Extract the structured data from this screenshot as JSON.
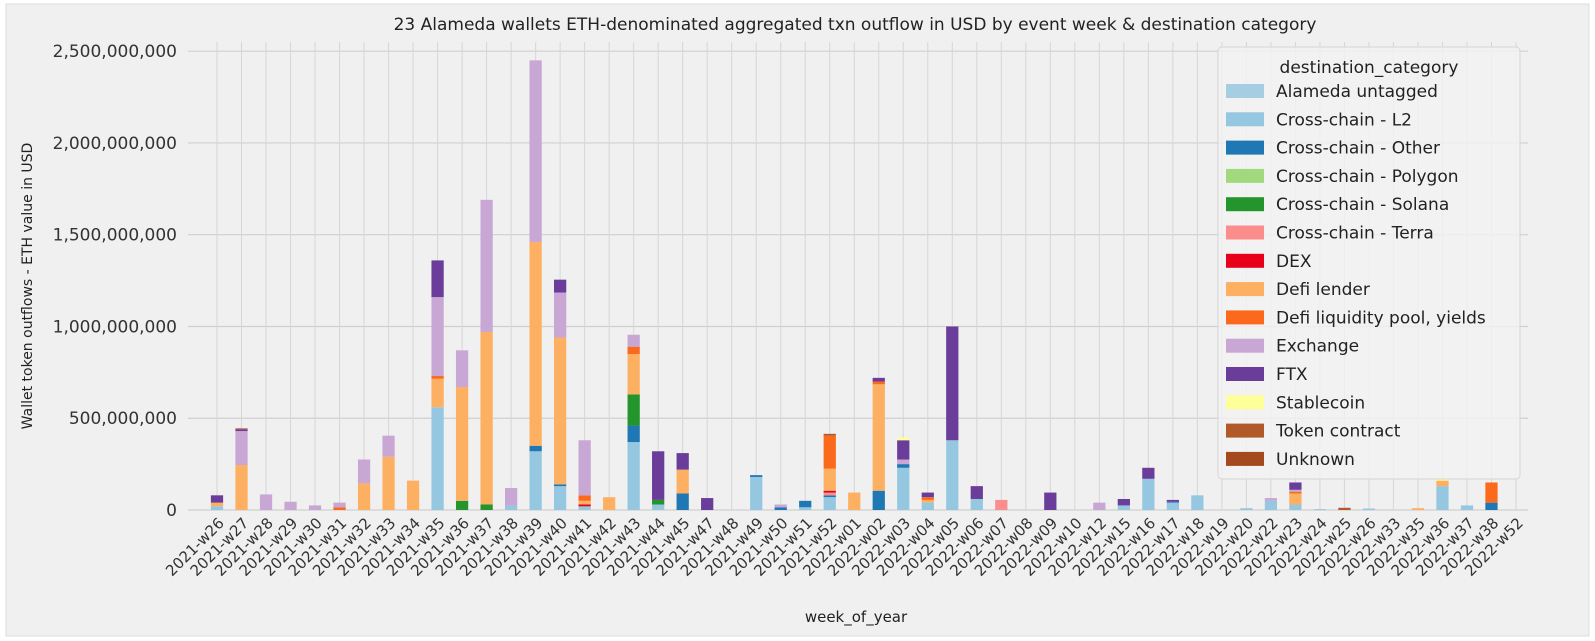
{
  "chart_data": {
    "type": "bar",
    "stacked": true,
    "title": "23 Alameda wallets ETH-denominated aggregated txn outflow in USD by event week & destination category",
    "xlabel": "week_of_year",
    "ylabel": "Wallet token outflows - ETH value in USD",
    "ylim": [
      0,
      2550000000
    ],
    "yticks": [
      0,
      500000000,
      1000000000,
      1500000000,
      2000000000,
      2500000000
    ],
    "ytick_labels": [
      "0",
      "500,000,000",
      "1,000,000,000",
      "1,500,000,000",
      "2,000,000,000",
      "2,500,000,000"
    ],
    "grid": true,
    "legend_title": "destination_category",
    "legend_position": "top-right",
    "categories": [
      "2021-w26",
      "2021-w27",
      "2021-w28",
      "2021-w29",
      "2021-w30",
      "2021-w31",
      "2021-w32",
      "2021-w33",
      "2021-w34",
      "2021-w35",
      "2021-w36",
      "2021-w37",
      "2021-w38",
      "2021-w39",
      "2021-w40",
      "2021-w41",
      "2021-w42",
      "2021-w43",
      "2021-w44",
      "2021-w45",
      "2021-w47",
      "2021-w48",
      "2021-w49",
      "2021-w50",
      "2021-w51",
      "2021-w52",
      "2022-w01",
      "2022-w02",
      "2022-w03",
      "2022-w04",
      "2022-w05",
      "2022-w06",
      "2022-w07",
      "2022-w08",
      "2022-w09",
      "2022-w10",
      "2022-w12",
      "2022-w15",
      "2022-w16",
      "2022-w17",
      "2022-w18",
      "2022-w19",
      "2022-w20",
      "2022-w22",
      "2022-w23",
      "2022-w24",
      "2022-w25",
      "2022-w26",
      "2022-w33",
      "2022-w35",
      "2022-w36",
      "2022-w37",
      "2022-w38",
      "2022-w52"
    ],
    "series": [
      {
        "name": "Alameda untagged",
        "color": "#a6cee3",
        "values": [
          0,
          0,
          0,
          0,
          0,
          0,
          0,
          0,
          0,
          0,
          0,
          0,
          0,
          0,
          0,
          0,
          0,
          0,
          0,
          0,
          0,
          0,
          0,
          0,
          0,
          0,
          0,
          0,
          0,
          0,
          0,
          0,
          0,
          0,
          0,
          0,
          0,
          0,
          0,
          0,
          0,
          0,
          0,
          0,
          0,
          0,
          0,
          0,
          0,
          0,
          0,
          0,
          0,
          0
        ]
      },
      {
        "name": "Cross-chain - L2",
        "color": "#95c8e0",
        "values": [
          20000000,
          0,
          0,
          0,
          0,
          0,
          0,
          0,
          0,
          560000000,
          0,
          0,
          25000000,
          320000000,
          130000000,
          20000000,
          0,
          370000000,
          30000000,
          0,
          0,
          0,
          180000000,
          0,
          15000000,
          70000000,
          0,
          0,
          230000000,
          40000000,
          380000000,
          60000000,
          0,
          0,
          0,
          0,
          0,
          25000000,
          170000000,
          40000000,
          80000000,
          0,
          10000000,
          50000000,
          30000000,
          5000000,
          0,
          8000000,
          0,
          0,
          130000000,
          25000000,
          0,
          0
        ]
      },
      {
        "name": "Cross-chain - Other",
        "color": "#1f78b4",
        "values": [
          0,
          0,
          0,
          0,
          0,
          0,
          0,
          0,
          0,
          0,
          0,
          0,
          0,
          30000000,
          10000000,
          0,
          0,
          90000000,
          0,
          90000000,
          0,
          0,
          10000000,
          15000000,
          35000000,
          10000000,
          0,
          105000000,
          20000000,
          0,
          0,
          0,
          0,
          0,
          0,
          0,
          0,
          0,
          0,
          5000000,
          0,
          0,
          0,
          0,
          0,
          0,
          0,
          0,
          0,
          0,
          0,
          0,
          40000000,
          0
        ]
      },
      {
        "name": "Cross-chain - Polygon",
        "color": "#a2d97f",
        "values": [
          0,
          0,
          0,
          0,
          0,
          0,
          0,
          0,
          0,
          0,
          0,
          0,
          0,
          0,
          0,
          0,
          0,
          0,
          0,
          0,
          0,
          0,
          0,
          0,
          0,
          0,
          0,
          0,
          0,
          0,
          0,
          0,
          0,
          0,
          0,
          0,
          0,
          0,
          0,
          0,
          0,
          0,
          0,
          0,
          0,
          0,
          0,
          0,
          0,
          0,
          0,
          0,
          0,
          0
        ]
      },
      {
        "name": "Cross-chain - Solana",
        "color": "#23952c",
        "values": [
          0,
          0,
          0,
          0,
          0,
          0,
          0,
          0,
          0,
          0,
          50000000,
          30000000,
          0,
          0,
          0,
          0,
          0,
          170000000,
          25000000,
          0,
          0,
          0,
          0,
          0,
          0,
          0,
          0,
          0,
          0,
          0,
          0,
          0,
          0,
          0,
          0,
          0,
          0,
          0,
          0,
          0,
          0,
          0,
          0,
          0,
          0,
          0,
          0,
          0,
          0,
          0,
          0,
          0,
          0,
          0
        ]
      },
      {
        "name": "Cross-chain - Terra",
        "color": "#fb8d8d",
        "values": [
          0,
          0,
          0,
          0,
          0,
          0,
          0,
          0,
          0,
          0,
          0,
          0,
          0,
          0,
          0,
          0,
          0,
          0,
          0,
          0,
          0,
          0,
          0,
          0,
          0,
          15000000,
          0,
          0,
          0,
          0,
          0,
          0,
          55000000,
          0,
          0,
          0,
          0,
          0,
          0,
          0,
          0,
          0,
          0,
          0,
          0,
          0,
          0,
          0,
          0,
          0,
          0,
          0,
          0,
          0
        ]
      },
      {
        "name": "DEX",
        "color": "#e8001b",
        "values": [
          0,
          0,
          0,
          0,
          0,
          0,
          0,
          0,
          0,
          0,
          0,
          0,
          0,
          0,
          0,
          10000000,
          0,
          0,
          0,
          0,
          0,
          0,
          0,
          0,
          0,
          10000000,
          0,
          0,
          0,
          0,
          0,
          0,
          0,
          0,
          0,
          0,
          0,
          0,
          0,
          0,
          0,
          0,
          0,
          0,
          0,
          0,
          0,
          0,
          0,
          0,
          0,
          0,
          0,
          0
        ]
      },
      {
        "name": "Defi lender",
        "color": "#fdb062",
        "values": [
          20000000,
          245000000,
          0,
          0,
          0,
          0,
          145000000,
          290000000,
          160000000,
          155000000,
          620000000,
          940000000,
          0,
          1110000000,
          800000000,
          20000000,
          70000000,
          220000000,
          0,
          130000000,
          0,
          0,
          0,
          0,
          0,
          120000000,
          95000000,
          580000000,
          0,
          15000000,
          0,
          0,
          0,
          0,
          0,
          0,
          0,
          0,
          0,
          0,
          0,
          0,
          0,
          0,
          60000000,
          0,
          0,
          0,
          0,
          10000000,
          30000000,
          0,
          0,
          0
        ]
      },
      {
        "name": "Defi liquidity pool, yields",
        "color": "#fb6a1c",
        "values": [
          0,
          0,
          0,
          0,
          0,
          15000000,
          0,
          0,
          0,
          15000000,
          0,
          0,
          0,
          0,
          0,
          30000000,
          0,
          40000000,
          0,
          0,
          0,
          0,
          0,
          0,
          0,
          180000000,
          0,
          15000000,
          0,
          15000000,
          0,
          0,
          0,
          0,
          0,
          0,
          0,
          0,
          0,
          0,
          0,
          0,
          0,
          0,
          10000000,
          0,
          0,
          0,
          0,
          0,
          0,
          0,
          110000000,
          0
        ]
      },
      {
        "name": "Exchange",
        "color": "#c9a7d4",
        "values": [
          0,
          185000000,
          85000000,
          45000000,
          25000000,
          25000000,
          130000000,
          115000000,
          0,
          430000000,
          200000000,
          720000000,
          95000000,
          990000000,
          245000000,
          300000000,
          0,
          65000000,
          0,
          0,
          0,
          0,
          0,
          15000000,
          0,
          0,
          0,
          0,
          25000000,
          0,
          0,
          0,
          0,
          0,
          0,
          0,
          40000000,
          0,
          0,
          0,
          0,
          0,
          0,
          15000000,
          10000000,
          0,
          0,
          0,
          0,
          0,
          0,
          0,
          0,
          0
        ]
      },
      {
        "name": "FTX",
        "color": "#6a3d9a",
        "values": [
          40000000,
          10000000,
          0,
          0,
          0,
          0,
          0,
          0,
          0,
          200000000,
          0,
          0,
          0,
          0,
          70000000,
          0,
          0,
          0,
          265000000,
          90000000,
          65000000,
          0,
          0,
          0,
          0,
          0,
          0,
          20000000,
          105000000,
          25000000,
          620000000,
          70000000,
          0,
          0,
          95000000,
          0,
          0,
          35000000,
          60000000,
          10000000,
          0,
          0,
          0,
          0,
          40000000,
          0,
          0,
          0,
          0,
          0,
          0,
          0,
          0,
          0
        ]
      },
      {
        "name": "Stablecoin",
        "color": "#ffff99",
        "values": [
          0,
          0,
          0,
          0,
          0,
          0,
          0,
          0,
          0,
          0,
          0,
          0,
          0,
          0,
          0,
          0,
          0,
          0,
          0,
          0,
          0,
          0,
          0,
          0,
          0,
          0,
          0,
          0,
          15000000,
          0,
          0,
          0,
          0,
          0,
          0,
          0,
          0,
          0,
          0,
          0,
          0,
          0,
          0,
          0,
          0,
          0,
          0,
          0,
          0,
          0,
          10000000,
          0,
          0,
          0
        ]
      },
      {
        "name": "Token contract",
        "color": "#b15928",
        "values": [
          0,
          5000000,
          0,
          0,
          0,
          0,
          0,
          0,
          0,
          0,
          0,
          0,
          0,
          0,
          0,
          0,
          0,
          0,
          0,
          0,
          0,
          0,
          0,
          0,
          0,
          10000000,
          0,
          0,
          0,
          0,
          0,
          0,
          0,
          0,
          0,
          0,
          0,
          0,
          0,
          0,
          0,
          0,
          0,
          0,
          0,
          0,
          12000000,
          0,
          0,
          0,
          0,
          0,
          0,
          0
        ]
      },
      {
        "name": "Unknown",
        "color": "#a54a1f",
        "values": [
          0,
          0,
          0,
          0,
          0,
          0,
          0,
          0,
          0,
          0,
          0,
          0,
          0,
          0,
          0,
          0,
          0,
          0,
          0,
          0,
          0,
          0,
          0,
          0,
          0,
          0,
          0,
          0,
          0,
          0,
          0,
          0,
          0,
          0,
          0,
          0,
          0,
          0,
          0,
          0,
          0,
          0,
          0,
          0,
          0,
          0,
          0,
          0,
          0,
          0,
          0,
          0,
          0,
          0
        ]
      }
    ]
  }
}
